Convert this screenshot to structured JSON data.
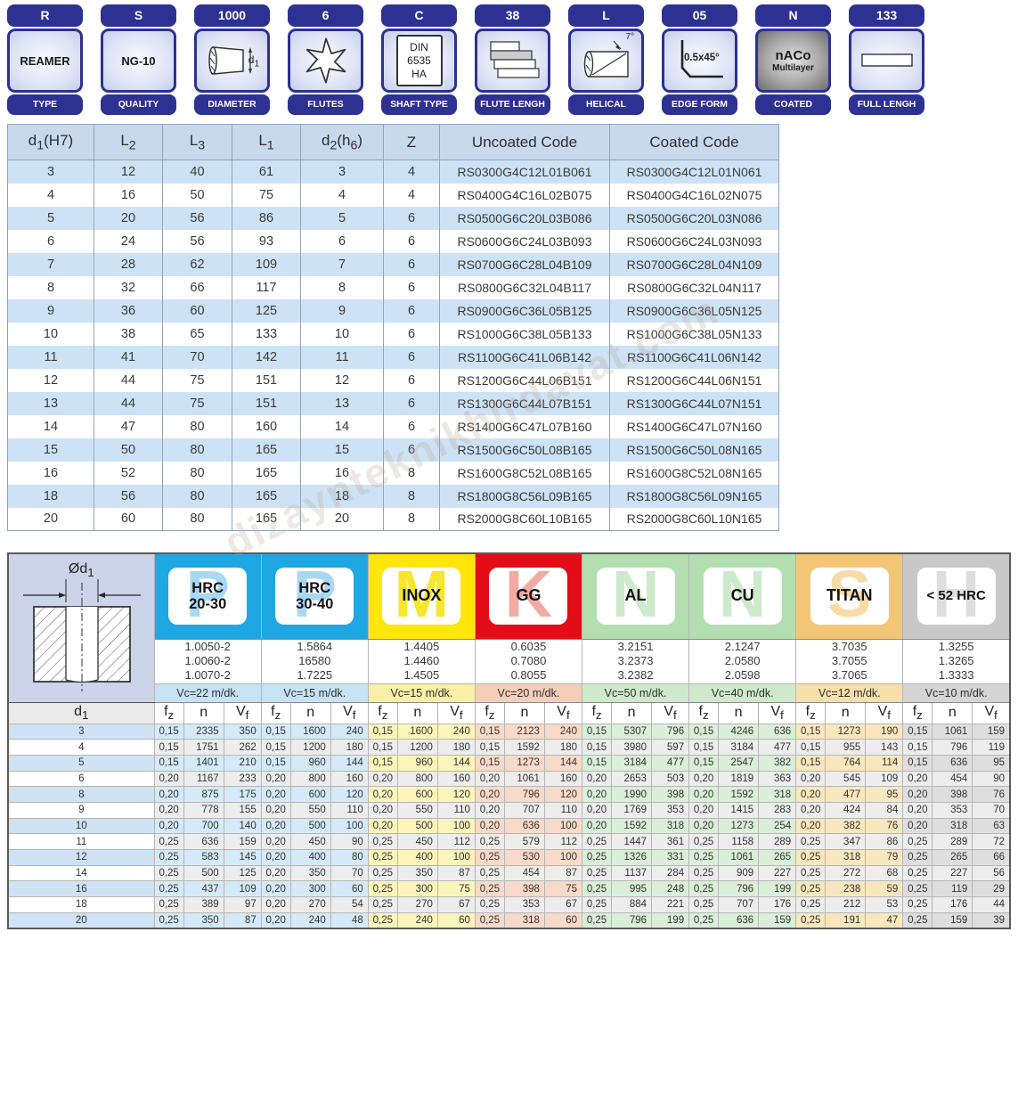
{
  "badges": [
    {
      "code": "R",
      "label": "TYPE",
      "text": "REAMER"
    },
    {
      "code": "S",
      "label": "QUALITY",
      "text": "NG-10"
    },
    {
      "code": "1000",
      "label": "DIAMETER",
      "icon_label": "d_1_"
    },
    {
      "code": "6",
      "label": "FLUTES"
    },
    {
      "code": "C",
      "label": "SHAFT TYPE",
      "lines": [
        "DIN",
        "6535",
        "HA"
      ]
    },
    {
      "code": "38",
      "label": "FLUTE LENGH"
    },
    {
      "code": "L",
      "label": "HELICAL",
      "icon_label": "7°"
    },
    {
      "code": "05",
      "label": "EDGE FORM",
      "icon_label": "0.5x45°"
    },
    {
      "code": "N",
      "label": "COATED",
      "lines": [
        "nACo",
        "Multilayer"
      ]
    },
    {
      "code": "133",
      "label": "FULL LENGH"
    }
  ],
  "dimension_table": {
    "headers": [
      "d_1_(H7)",
      "L_2_",
      "L_3_",
      "L_1_",
      "d_2_(h_6_)",
      "Z",
      "Uncoated Code",
      "Coated Code"
    ],
    "rows": [
      [
        3,
        12,
        40,
        61,
        3,
        4,
        "RS0300G4C12L01B061",
        "RS0300G4C12L01N061"
      ],
      [
        4,
        16,
        50,
        75,
        4,
        4,
        "RS0400G4C16L02B075",
        "RS0400G4C16L02N075"
      ],
      [
        5,
        20,
        56,
        86,
        5,
        6,
        "RS0500G6C20L03B086",
        "RS0500G6C20L03N086"
      ],
      [
        6,
        24,
        56,
        93,
        6,
        6,
        "RS0600G6C24L03B093",
        "RS0600G6C24L03N093"
      ],
      [
        7,
        28,
        62,
        109,
        7,
        6,
        "RS0700G6C28L04B109",
        "RS0700G6C28L04N109"
      ],
      [
        8,
        32,
        66,
        117,
        8,
        6,
        "RS0800G6C32L04B117",
        "RS0800G6C32L04N117"
      ],
      [
        9,
        36,
        60,
        125,
        9,
        6,
        "RS0900G6C36L05B125",
        "RS0900G6C36L05N125"
      ],
      [
        10,
        38,
        65,
        133,
        10,
        6,
        "RS1000G6C38L05B133",
        "RS1000G6C38L05N133"
      ],
      [
        11,
        41,
        70,
        142,
        11,
        6,
        "RS1100G6C41L06B142",
        "RS1100G6C41L06N142"
      ],
      [
        12,
        44,
        75,
        151,
        12,
        6,
        "RS1200G6C44L06B151",
        "RS1200G6C44L06N151"
      ],
      [
        13,
        44,
        75,
        151,
        13,
        6,
        "RS1300G6C44L07B151",
        "RS1300G6C44L07N151"
      ],
      [
        14,
        47,
        80,
        160,
        14,
        6,
        "RS1400G6C47L07B160",
        "RS1400G6C47L07N160"
      ],
      [
        15,
        50,
        80,
        165,
        15,
        6,
        "RS1500G6C50L08B165",
        "RS1500G6C50L08N165"
      ],
      [
        16,
        52,
        80,
        165,
        16,
        8,
        "RS1600G8C52L08B165",
        "RS1600G8C52L08N165"
      ],
      [
        18,
        56,
        80,
        165,
        18,
        8,
        "RS1800G8C56L09B165",
        "RS1800G8C56L09N165"
      ],
      [
        20,
        60,
        80,
        165,
        20,
        8,
        "RS2000G8C60L10B165",
        "RS2000G8C60L10N165"
      ]
    ]
  },
  "cutting_table": {
    "diagram_label": "Ød_1_",
    "d1_header": "d_1_",
    "sub_headers": [
      "f_z_",
      "n",
      "V_f_"
    ],
    "even_row_bg": "#ededed",
    "d1_alt_bg": "#cfe3f5",
    "groups": [
      {
        "label_lines": [
          "HRC",
          "20-30"
        ],
        "letter": "P",
        "header_bg": "#1ea7e2",
        "letter_color": "#a9d9f2",
        "codes": [
          "1.0050-2",
          "1.0060-2",
          "1.0070-2"
        ],
        "vc": "Vc=22 m/dk.",
        "vc_bg": "#c6e3f5",
        "row_bg": "#d5eaf8"
      },
      {
        "label_lines": [
          "HRC",
          "30-40"
        ],
        "letter": "P",
        "header_bg": "#1ea7e2",
        "letter_color": "#a9d9f2",
        "codes": [
          "1.5864",
          "16580",
          "1.7225"
        ],
        "vc": "Vc=15 m/dk.",
        "vc_bg": "#c6e3f5",
        "row_bg": "#d5eaf8"
      },
      {
        "label_lines": [
          "INOX"
        ],
        "letter": "M",
        "header_bg": "#ffe60a",
        "letter_color": "#f8e62c",
        "codes": [
          "1.4405",
          "1.4460",
          "1.4505"
        ],
        "vc": "Vc=15 m/dk.",
        "vc_bg": "#f8f0a4",
        "row_bg": "#fcf5bb"
      },
      {
        "label_lines": [
          "GG"
        ],
        "letter": "K",
        "header_bg": "#e30d17",
        "letter_color": "#f2aba3",
        "codes": [
          "0.6035",
          "0.7080",
          "0.8055"
        ],
        "vc": "Vc=20 m/dk.",
        "vc_bg": "#f6cfba",
        "row_bg": "#f9d9c7"
      },
      {
        "label_lines": [
          "AL"
        ],
        "letter": "N",
        "header_bg": "#b2deb0",
        "letter_color": "#cdeacb",
        "codes": [
          "3.2151",
          "3.2373",
          "3.2382"
        ],
        "vc": "Vc=50 m/dk.",
        "vc_bg": "#cfe9cc",
        "row_bg": "#daefd7"
      },
      {
        "label_lines": [
          "CU"
        ],
        "letter": "N",
        "header_bg": "#b2deb0",
        "letter_color": "#cdeacb",
        "codes": [
          "2.1247",
          "2.0580",
          "2.0598"
        ],
        "vc": "Vc=40 m/dk.",
        "vc_bg": "#cfe9cc",
        "row_bg": "#daefd7"
      },
      {
        "label_lines": [
          "TITAN"
        ],
        "letter": "S",
        "header_bg": "#f3c677",
        "letter_color": "#f7dba8",
        "codes": [
          "3.7035",
          "3.7055",
          "3.7065"
        ],
        "vc": "Vc=12 m/dk.",
        "vc_bg": "#f6dfa8",
        "row_bg": "#f9e7bd"
      },
      {
        "label_lines": [
          "< 52 HRC"
        ],
        "letter": "H",
        "header_bg": "#c8c8c8",
        "letter_color": "#dedede",
        "codes": [
          "1.3255",
          "1.3265",
          "1.3333"
        ],
        "vc": "Vc=10 m/dk.",
        "vc_bg": "#d5d5d5",
        "row_bg": "#dedede"
      }
    ],
    "rows": [
      {
        "d1": 3,
        "vals": [
          [
            "0,15",
            2335,
            350
          ],
          [
            "0,15",
            1600,
            240
          ],
          [
            "0,15",
            1600,
            240
          ],
          [
            "0,15",
            2123,
            240
          ],
          [
            "0,15",
            5307,
            796
          ],
          [
            "0,15",
            4246,
            636
          ],
          [
            "0,15",
            1273,
            190
          ],
          [
            "0,15",
            1061,
            159
          ]
        ]
      },
      {
        "d1": 4,
        "vals": [
          [
            "0,15",
            1751,
            262
          ],
          [
            "0,15",
            1200,
            180
          ],
          [
            "0,15",
            1200,
            180
          ],
          [
            "0,15",
            1592,
            180
          ],
          [
            "0,15",
            3980,
            597
          ],
          [
            "0,15",
            3184,
            477
          ],
          [
            "0,15",
            955,
            143
          ],
          [
            "0,15",
            796,
            119
          ]
        ]
      },
      {
        "d1": 5,
        "vals": [
          [
            "0,15",
            1401,
            210
          ],
          [
            "0,15",
            960,
            144
          ],
          [
            "0,15",
            960,
            144
          ],
          [
            "0,15",
            1273,
            144
          ],
          [
            "0,15",
            3184,
            477
          ],
          [
            "0,15",
            2547,
            382
          ],
          [
            "0,15",
            764,
            114
          ],
          [
            "0,15",
            636,
            95
          ]
        ]
      },
      {
        "d1": 6,
        "vals": [
          [
            "0,20",
            1167,
            233
          ],
          [
            "0,20",
            800,
            160
          ],
          [
            "0,20",
            800,
            160
          ],
          [
            "0,20",
            1061,
            160
          ],
          [
            "0,20",
            2653,
            503
          ],
          [
            "0,20",
            1819,
            363
          ],
          [
            "0,20",
            545,
            109
          ],
          [
            "0,20",
            454,
            90
          ]
        ]
      },
      {
        "d1": 8,
        "vals": [
          [
            "0,20",
            875,
            175
          ],
          [
            "0,20",
            600,
            120
          ],
          [
            "0,20",
            600,
            120
          ],
          [
            "0,20",
            796,
            120
          ],
          [
            "0,20",
            1990,
            398
          ],
          [
            "0,20",
            1592,
            318
          ],
          [
            "0,20",
            477,
            95
          ],
          [
            "0,20",
            398,
            76
          ]
        ]
      },
      {
        "d1": 9,
        "vals": [
          [
            "0,20",
            778,
            155
          ],
          [
            "0,20",
            550,
            110
          ],
          [
            "0,20",
            550,
            110
          ],
          [
            "0,20",
            707,
            110
          ],
          [
            "0,20",
            1769,
            353
          ],
          [
            "0,20",
            1415,
            283
          ],
          [
            "0,20",
            424,
            84
          ],
          [
            "0,20",
            353,
            70
          ]
        ]
      },
      {
        "d1": 10,
        "vals": [
          [
            "0,20",
            700,
            140
          ],
          [
            "0,20",
            500,
            100
          ],
          [
            "0,20",
            500,
            100
          ],
          [
            "0,20",
            636,
            100
          ],
          [
            "0,20",
            1592,
            318
          ],
          [
            "0,20",
            1273,
            254
          ],
          [
            "0,20",
            382,
            76
          ],
          [
            "0,20",
            318,
            63
          ]
        ]
      },
      {
        "d1": 11,
        "vals": [
          [
            "0,25",
            636,
            159
          ],
          [
            "0,20",
            450,
            90
          ],
          [
            "0,25",
            450,
            112
          ],
          [
            "0,25",
            579,
            112
          ],
          [
            "0,25",
            1447,
            361
          ],
          [
            "0,25",
            1158,
            289
          ],
          [
            "0,25",
            347,
            86
          ],
          [
            "0,25",
            289,
            72
          ]
        ]
      },
      {
        "d1": 12,
        "vals": [
          [
            "0,25",
            583,
            145
          ],
          [
            "0,20",
            400,
            80
          ],
          [
            "0,25",
            400,
            100
          ],
          [
            "0,25",
            530,
            100
          ],
          [
            "0,25",
            1326,
            331
          ],
          [
            "0,25",
            1061,
            265
          ],
          [
            "0,25",
            318,
            79
          ],
          [
            "0,25",
            265,
            66
          ]
        ]
      },
      {
        "d1": 14,
        "vals": [
          [
            "0,25",
            500,
            125
          ],
          [
            "0,20",
            350,
            70
          ],
          [
            "0,25",
            350,
            87
          ],
          [
            "0,25",
            454,
            87
          ],
          [
            "0,25",
            1137,
            284
          ],
          [
            "0,25",
            909,
            227
          ],
          [
            "0,25",
            272,
            68
          ],
          [
            "0,25",
            227,
            56
          ]
        ]
      },
      {
        "d1": 16,
        "vals": [
          [
            "0,25",
            437,
            109
          ],
          [
            "0,20",
            300,
            60
          ],
          [
            "0,25",
            300,
            75
          ],
          [
            "0,25",
            398,
            75
          ],
          [
            "0,25",
            995,
            248
          ],
          [
            "0,25",
            796,
            199
          ],
          [
            "0,25",
            238,
            59
          ],
          [
            "0,25",
            119,
            29
          ]
        ]
      },
      {
        "d1": 18,
        "vals": [
          [
            "0,25",
            389,
            97
          ],
          [
            "0,20",
            270,
            54
          ],
          [
            "0,25",
            270,
            67
          ],
          [
            "0,25",
            353,
            67
          ],
          [
            "0,25",
            884,
            221
          ],
          [
            "0,25",
            707,
            176
          ],
          [
            "0,25",
            212,
            53
          ],
          [
            "0,25",
            176,
            44
          ]
        ]
      },
      {
        "d1": 20,
        "vals": [
          [
            "0,25",
            350,
            87
          ],
          [
            "0,20",
            240,
            48
          ],
          [
            "0,25",
            240,
            60
          ],
          [
            "0,25",
            318,
            60
          ],
          [
            "0,25",
            796,
            199
          ],
          [
            "0,25",
            636,
            159
          ],
          [
            "0,25",
            191,
            47
          ],
          [
            "0,25",
            159,
            39
          ]
        ]
      }
    ]
  },
  "watermark": {
    "text": "dizaynteknikhirdavat.com"
  }
}
